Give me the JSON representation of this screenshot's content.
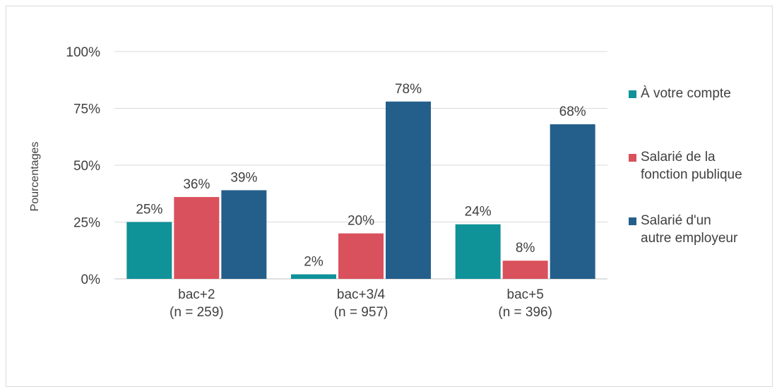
{
  "chart_data": {
    "type": "bar",
    "categories": [
      [
        "bac+2",
        "(n = 259)"
      ],
      [
        "bac+3/4",
        "(n = 957)"
      ],
      [
        "bac+5",
        "(n = 396)"
      ]
    ],
    "series": [
      {
        "name": "À votre compte",
        "color": "#0f9298",
        "values": [
          25,
          2,
          24
        ],
        "labels": [
          "25%",
          "2%",
          "24%"
        ]
      },
      {
        "name": "Salarié de la fonction publique",
        "color": "#d9515c",
        "values": [
          36,
          20,
          8
        ],
        "labels": [
          "36%",
          "20%",
          "8%"
        ]
      },
      {
        "name": "Salarié d'un autre employeur",
        "color": "#245f8c",
        "values": [
          39,
          78,
          68
        ],
        "labels": [
          "39%",
          "78%",
          "68%"
        ]
      }
    ],
    "ylabel": "Pourcentages",
    "ylim": [
      0,
      100
    ],
    "yticks": [
      {
        "value": 0,
        "label": "0%"
      },
      {
        "value": 25,
        "label": "25%"
      },
      {
        "value": 50,
        "label": "50%"
      },
      {
        "value": 75,
        "label": "75%"
      },
      {
        "value": 100,
        "label": "100%"
      }
    ],
    "grid": true,
    "legend_position": "right"
  },
  "legend": {
    "items": [
      {
        "lines": [
          "À votre compte"
        ],
        "color": "#0f9298"
      },
      {
        "lines": [
          "Salarié de la",
          "fonction publique"
        ],
        "color": "#d9515c"
      },
      {
        "lines": [
          "Salarié d'un",
          "autre employeur"
        ],
        "color": "#245f8c"
      }
    ]
  }
}
